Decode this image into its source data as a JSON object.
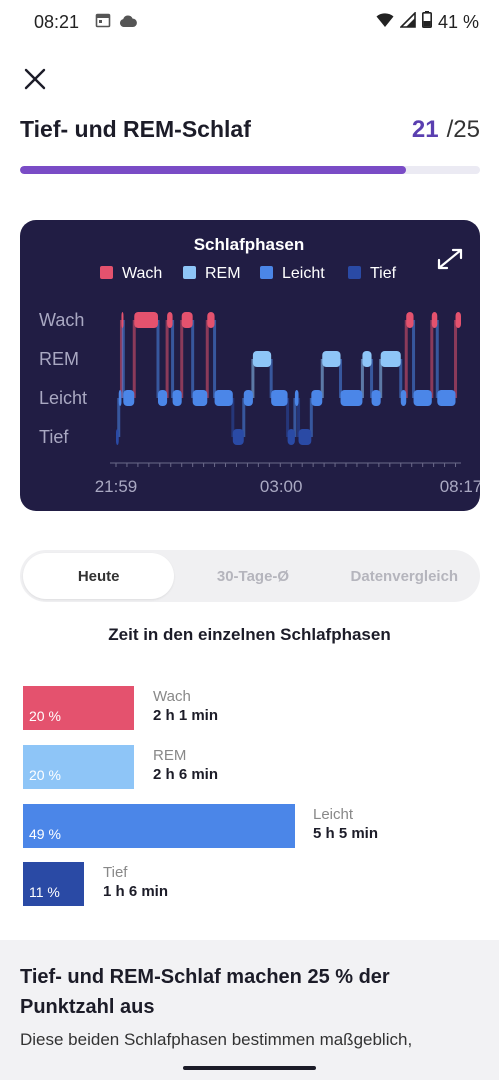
{
  "status_bar": {
    "time": "08:21",
    "battery": "41 %"
  },
  "header": {
    "title": "Tief- und REM-Schlaf",
    "score": "21",
    "score_total": "/25"
  },
  "progress": {
    "fraction": 0.84,
    "color": "#7a4cc6"
  },
  "chart": {
    "title": "Schlafphasen",
    "legend": [
      {
        "label": "Wach",
        "color": "#e4526e"
      },
      {
        "label": "REM",
        "color": "#8ec5f7"
      },
      {
        "label": "Leicht",
        "color": "#4b86e8"
      },
      {
        "label": "Tief",
        "color": "#2a4aa5"
      }
    ],
    "y_labels": [
      "Wach",
      "REM",
      "Leicht",
      "Tief"
    ],
    "x_labels": [
      "21:59",
      "03:00",
      "08:17"
    ]
  },
  "chart_data": {
    "type": "area",
    "title": "Schlafphasen",
    "stages": [
      "Wach",
      "REM",
      "Leicht",
      "Tief"
    ],
    "x_ticks": [
      "21:59",
      "03:00",
      "08:17"
    ],
    "x_range_minutes": [
      0,
      378
    ],
    "segments": [
      {
        "start": 0,
        "end": 3,
        "stage": "Tief"
      },
      {
        "start": 3,
        "end": 6,
        "stage": "Leicht"
      },
      {
        "start": 6,
        "end": 8,
        "stage": "Wach"
      },
      {
        "start": 8,
        "end": 20,
        "stage": "Leicht"
      },
      {
        "start": 20,
        "end": 46,
        "stage": "Wach"
      },
      {
        "start": 46,
        "end": 56,
        "stage": "Leicht"
      },
      {
        "start": 56,
        "end": 62,
        "stage": "Wach"
      },
      {
        "start": 62,
        "end": 72,
        "stage": "Leicht"
      },
      {
        "start": 72,
        "end": 84,
        "stage": "Wach"
      },
      {
        "start": 84,
        "end": 100,
        "stage": "Leicht"
      },
      {
        "start": 100,
        "end": 108,
        "stage": "Wach"
      },
      {
        "start": 108,
        "end": 128,
        "stage": "Leicht"
      },
      {
        "start": 128,
        "end": 140,
        "stage": "Tief"
      },
      {
        "start": 140,
        "end": 150,
        "stage": "Leicht"
      },
      {
        "start": 150,
        "end": 170,
        "stage": "REM"
      },
      {
        "start": 170,
        "end": 188,
        "stage": "Leicht"
      },
      {
        "start": 188,
        "end": 196,
        "stage": "Tief"
      },
      {
        "start": 196,
        "end": 200,
        "stage": "Leicht"
      },
      {
        "start": 200,
        "end": 214,
        "stage": "Tief"
      },
      {
        "start": 214,
        "end": 226,
        "stage": "Leicht"
      },
      {
        "start": 226,
        "end": 246,
        "stage": "REM"
      },
      {
        "start": 246,
        "end": 270,
        "stage": "Leicht"
      },
      {
        "start": 270,
        "end": 280,
        "stage": "REM"
      },
      {
        "start": 280,
        "end": 290,
        "stage": "Leicht"
      },
      {
        "start": 290,
        "end": 312,
        "stage": "REM"
      },
      {
        "start": 312,
        "end": 318,
        "stage": "Leicht"
      },
      {
        "start": 318,
        "end": 326,
        "stage": "Wach"
      },
      {
        "start": 326,
        "end": 346,
        "stage": "Leicht"
      },
      {
        "start": 346,
        "end": 352,
        "stage": "Wach"
      },
      {
        "start": 352,
        "end": 372,
        "stage": "Leicht"
      },
      {
        "start": 372,
        "end": 378,
        "stage": "Wach"
      }
    ]
  },
  "tabs": [
    {
      "label": "Heute",
      "active": true
    },
    {
      "label": "30-Tage-Ø",
      "active": false
    },
    {
      "label": "Datenvergleich",
      "active": false
    }
  ],
  "breakdown": {
    "title": "Zeit in den einzelnen Schlafphasen",
    "rows": [
      {
        "stage": "Wach",
        "percent_label": "20 %",
        "percent": 20,
        "duration": "2 h 1 min",
        "color": "#e4526e"
      },
      {
        "stage": "REM",
        "percent_label": "20 %",
        "percent": 20,
        "duration": "2 h 6 min",
        "color": "#8ec5f7"
      },
      {
        "stage": "Leicht",
        "percent_label": "49 %",
        "percent": 49,
        "duration": "5 h 5 min",
        "color": "#4b86e8"
      },
      {
        "stage": "Tief",
        "percent_label": "11 %",
        "percent": 11,
        "duration": "1 h 6 min",
        "color": "#2a4aa5"
      }
    ]
  },
  "info": {
    "heading": "Tief- und REM-Schlaf machen 25 % der Punktzahl aus",
    "body": "Diese beiden Schlafphasen bestimmen maßgeblich,"
  }
}
